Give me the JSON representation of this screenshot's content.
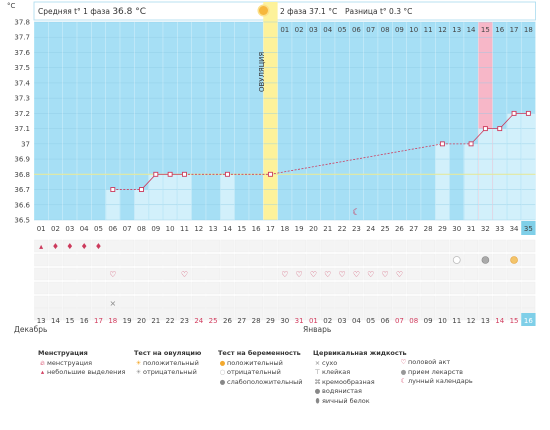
{
  "header": {
    "phase1": "Средняя t° 1 фаза",
    "phase1_value": "36.8 °C",
    "phase2": "2 фаза 37.1 °C",
    "diff": "Разница t° 0.3 °C"
  },
  "y_unit": "°C",
  "ovulation_label": "ОВУЛЯЦИЯ",
  "month_left": "Декабрь",
  "month_right": "Январь",
  "colors": {
    "plot_bg": "#a6dff5",
    "bar": "#d2f0fb",
    "ovulation": "#fdf29b",
    "menses": "#f7b7c8",
    "line": "#cc3a5c",
    "weekend": "#d23c5e",
    "cover_line": "#e4e9a0"
  },
  "chart_data": {
    "type": "line",
    "ylim": [
      36.5,
      37.8
    ],
    "yticks": [
      36.5,
      36.6,
      36.7,
      36.8,
      36.9,
      37,
      37.1,
      37.2,
      37.3,
      37.4,
      37.5,
      37.6,
      37.7,
      37.8
    ],
    "ytick_labels": [
      "36.5",
      "36.6",
      "36.7",
      "36.8",
      "36.9",
      "37",
      "37.1",
      "37.2",
      "37.3",
      "37.4",
      "37.5",
      "37.6",
      "37.7",
      "37.8"
    ],
    "cycle_days": [
      "01",
      "02",
      "03",
      "04",
      "05",
      "06",
      "07",
      "08",
      "09",
      "10",
      "11",
      "12",
      "13",
      "14",
      "15",
      "16",
      "17",
      "18",
      "19",
      "20",
      "21",
      "22",
      "23",
      "24",
      "25",
      "26",
      "27",
      "28",
      "29",
      "30",
      "31",
      "32",
      "33",
      "34",
      "35"
    ],
    "top_days": [
      "01",
      "02",
      "03",
      "04",
      "05",
      "06",
      "07",
      "08",
      "09",
      "10",
      "11",
      "12",
      "13",
      "14",
      "15",
      "16",
      "17",
      "18"
    ],
    "dates": [
      "13",
      "14",
      "15",
      "16",
      "17",
      "18",
      "19",
      "20",
      "21",
      "22",
      "23",
      "24",
      "25",
      "26",
      "27",
      "28",
      "29",
      "30",
      "31",
      "01",
      "02",
      "03",
      "04",
      "05",
      "06",
      "07",
      "08",
      "09",
      "10",
      "11",
      "12",
      "13",
      "14",
      "15",
      "16"
    ],
    "weekend_dates": [
      4,
      5,
      11,
      12,
      18,
      19,
      25,
      26,
      32,
      33
    ],
    "temps": [
      null,
      null,
      null,
      null,
      null,
      36.7,
      null,
      36.7,
      36.8,
      36.8,
      36.8,
      null,
      null,
      36.8,
      null,
      null,
      36.8,
      null,
      null,
      null,
      null,
      null,
      null,
      null,
      null,
      null,
      null,
      null,
      37.0,
      null,
      37.0,
      37.1,
      37.1,
      37.2,
      37.2
    ],
    "cover_line": 36.8,
    "ovulation_day": 17,
    "menses_day": 32,
    "current_day": 35,
    "menstruation_days": [
      1,
      2,
      3,
      4,
      5
    ],
    "sex_days": [
      6,
      11,
      18,
      19,
      20,
      21,
      22,
      23,
      24,
      25,
      26
    ],
    "pregnancy_negative_day": 30,
    "pregnancy_weak_day": 32,
    "pregnancy_positive_day": 34,
    "moon_day": 23,
    "cervical_dry_day": 6
  },
  "legend": {
    "menstruation": {
      "title": "Менструация",
      "items": [
        "менструация",
        "небольшие выделения"
      ]
    },
    "ovulation_test": {
      "title": "Тест на овуляцию",
      "items": [
        "положительный",
        "отрицательный"
      ]
    },
    "pregnancy_test": {
      "title": "Тест на беременность",
      "items": [
        "положительный",
        "отрицательный",
        "слабоположительный"
      ]
    },
    "cervical": {
      "title": "Цервикальная жидкость",
      "items": [
        "сухо",
        "клейкая",
        "кремообразная",
        "водянистая",
        "яичный белок"
      ]
    },
    "other": {
      "items": [
        "половой акт",
        "прием лекарств",
        "лунный календарь"
      ]
    }
  }
}
